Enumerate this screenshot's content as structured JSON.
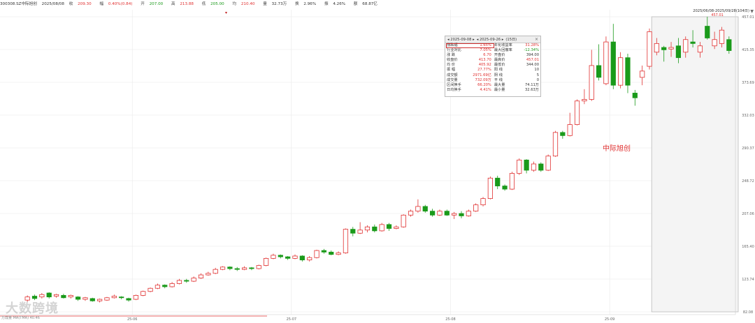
{
  "header": {
    "code": "300308.SZ中际旭创",
    "date": "2025/08/08",
    "close_label": "收",
    "close": "209.30",
    "chg_label": "幅",
    "chg": "0.40%(0.84)",
    "open_label": "开",
    "open": "207.00",
    "high_label": "高",
    "high": "213.88",
    "low_label": "低",
    "low": "205.00",
    "avg_label": "均",
    "avg": "210.40",
    "vol_label": "量",
    "vol": "32.73万",
    "turn_label": "换",
    "turn": "2.96%",
    "amp_label": "振",
    "amp": "4.26%",
    "amount_label": "额",
    "amount": "68.87亿"
  },
  "range_label": "2025/06/08-2025/09/28(104日)",
  "annotation": "中际旭创",
  "watermark": "大数跨境",
  "bottom_left": "万成量  MA(TMA) 40.46",
  "infobox": {
    "start": "2025-09-08",
    "end": "2025-09-26",
    "days": "(15日)",
    "rows": [
      [
        "涨跌幅",
        "1.65%",
        "年化收益率",
        "31.28%"
      ],
      [
        "行业对比",
        "7.05%",
        "最大回撤率",
        "-12.34%"
      ],
      [
        "涨 跌",
        "6.70",
        "开盘价",
        "394.00"
      ],
      [
        "收盘价",
        "413.70",
        "最高价",
        "457.01"
      ],
      [
        "均 价",
        "405.92",
        "最低价",
        "344.00"
      ],
      [
        "振 幅",
        "27.77%",
        "阳 线",
        "10"
      ],
      [
        "成交额",
        "2971.69亿",
        "阴 线",
        "5"
      ],
      [
        "成交量",
        "732.09万",
        "平 线",
        "0"
      ],
      [
        "区间换手",
        "66.20%",
        "最大量",
        "74.11万"
      ],
      [
        "日均换手",
        "4.41%",
        "最小量",
        "32.63万"
      ]
    ]
  },
  "colors": {
    "up": "#e03030",
    "down": "#1a9a1a",
    "grid": "#e8e8e8",
    "select": "#bbbbbb"
  },
  "chart_data": {
    "type": "candlestick",
    "y_ticks": [
      "457.01",
      "415.35",
      "373.69",
      "332.03",
      "290.37",
      "248.72",
      "207.06",
      "165.40",
      "123.74",
      "82.08"
    ],
    "ylim": [
      82.08,
      457.01
    ],
    "x_ticks": [
      "25-06",
      "25-07",
      "25-08",
      "25-09"
    ],
    "max_label": "457.01",
    "selection": {
      "from": "2025-09-08",
      "to": "2025-09-26"
    },
    "candles": [
      {
        "o": 97,
        "c": 101,
        "h": 103,
        "l": 95
      },
      {
        "o": 102,
        "c": 99,
        "h": 104,
        "l": 97
      },
      {
        "o": 101,
        "c": 104,
        "h": 106,
        "l": 99
      },
      {
        "o": 106,
        "c": 101,
        "h": 107,
        "l": 99
      },
      {
        "o": 102,
        "c": 104,
        "h": 105,
        "l": 100
      },
      {
        "o": 103,
        "c": 100,
        "h": 105,
        "l": 99
      },
      {
        "o": 101,
        "c": 103,
        "h": 104,
        "l": 99
      },
      {
        "o": 101,
        "c": 98,
        "h": 102,
        "l": 96
      },
      {
        "o": 98,
        "c": 100,
        "h": 101,
        "l": 96
      },
      {
        "o": 99,
        "c": 96,
        "h": 100,
        "l": 95
      },
      {
        "o": 96,
        "c": 98,
        "h": 99,
        "l": 94
      },
      {
        "o": 97,
        "c": 100,
        "h": 101,
        "l": 96
      },
      {
        "o": 100,
        "c": 102,
        "h": 104,
        "l": 99
      },
      {
        "o": 101,
        "c": 100,
        "h": 102,
        "l": 98
      },
      {
        "o": 99,
        "c": 97,
        "h": 100,
        "l": 95
      },
      {
        "o": 98,
        "c": 103,
        "h": 104,
        "l": 97
      },
      {
        "o": 103,
        "c": 108,
        "h": 109,
        "l": 102
      },
      {
        "o": 108,
        "c": 112,
        "h": 113,
        "l": 107
      },
      {
        "o": 112,
        "c": 116,
        "h": 118,
        "l": 111
      },
      {
        "o": 116,
        "c": 114,
        "h": 117,
        "l": 112
      },
      {
        "o": 114,
        "c": 118,
        "h": 120,
        "l": 113
      },
      {
        "o": 118,
        "c": 122,
        "h": 124,
        "l": 117
      },
      {
        "o": 122,
        "c": 121,
        "h": 124,
        "l": 119
      },
      {
        "o": 121,
        "c": 125,
        "h": 127,
        "l": 120
      },
      {
        "o": 125,
        "c": 129,
        "h": 131,
        "l": 124
      },
      {
        "o": 129,
        "c": 131,
        "h": 133,
        "l": 128
      },
      {
        "o": 131,
        "c": 136,
        "h": 138,
        "l": 130
      },
      {
        "o": 136,
        "c": 139,
        "h": 140,
        "l": 135
      },
      {
        "o": 139,
        "c": 137,
        "h": 140,
        "l": 135
      },
      {
        "o": 137,
        "c": 136,
        "h": 139,
        "l": 134
      },
      {
        "o": 136,
        "c": 138,
        "h": 140,
        "l": 135
      },
      {
        "o": 138,
        "c": 137,
        "h": 139,
        "l": 135
      },
      {
        "o": 137,
        "c": 141,
        "h": 142,
        "l": 136
      },
      {
        "o": 141,
        "c": 150,
        "h": 151,
        "l": 140
      },
      {
        "o": 150,
        "c": 154,
        "h": 156,
        "l": 149
      },
      {
        "o": 154,
        "c": 152,
        "h": 155,
        "l": 150
      },
      {
        "o": 152,
        "c": 150,
        "h": 153,
        "l": 148
      },
      {
        "o": 150,
        "c": 153,
        "h": 155,
        "l": 149
      },
      {
        "o": 153,
        "c": 148,
        "h": 154,
        "l": 146
      },
      {
        "o": 148,
        "c": 151,
        "h": 153,
        "l": 146
      },
      {
        "o": 151,
        "c": 160,
        "h": 161,
        "l": 150
      },
      {
        "o": 160,
        "c": 158,
        "h": 162,
        "l": 156
      },
      {
        "o": 158,
        "c": 155,
        "h": 160,
        "l": 154
      },
      {
        "o": 155,
        "c": 157,
        "h": 159,
        "l": 154
      },
      {
        "o": 157,
        "c": 187,
        "h": 188,
        "l": 156
      },
      {
        "o": 187,
        "c": 182,
        "h": 190,
        "l": 178
      },
      {
        "o": 182,
        "c": 186,
        "h": 196,
        "l": 181
      },
      {
        "o": 186,
        "c": 190,
        "h": 192,
        "l": 183
      },
      {
        "o": 190,
        "c": 185,
        "h": 193,
        "l": 183
      },
      {
        "o": 185,
        "c": 193,
        "h": 195,
        "l": 184
      },
      {
        "o": 193,
        "c": 188,
        "h": 195,
        "l": 185
      },
      {
        "o": 188,
        "c": 190,
        "h": 192,
        "l": 187
      },
      {
        "o": 190,
        "c": 205,
        "h": 206,
        "l": 189
      },
      {
        "o": 205,
        "c": 210,
        "h": 212,
        "l": 203
      },
      {
        "o": 210,
        "c": 216,
        "h": 225,
        "l": 208
      },
      {
        "o": 216,
        "c": 210,
        "h": 218,
        "l": 208
      },
      {
        "o": 210,
        "c": 205,
        "h": 213,
        "l": 203
      },
      {
        "o": 205,
        "c": 210,
        "h": 212,
        "l": 204
      },
      {
        "o": 210,
        "c": 205,
        "h": 212,
        "l": 204
      },
      {
        "o": 205,
        "c": 207,
        "h": 209,
        "l": 200
      },
      {
        "o": 207,
        "c": 204,
        "h": 210,
        "l": 201
      },
      {
        "o": 204,
        "c": 210,
        "h": 212,
        "l": 203
      },
      {
        "o": 210,
        "c": 218,
        "h": 220,
        "l": 209
      },
      {
        "o": 218,
        "c": 226,
        "h": 228,
        "l": 216
      },
      {
        "o": 226,
        "c": 252,
        "h": 254,
        "l": 225
      },
      {
        "o": 252,
        "c": 242,
        "h": 255,
        "l": 238
      },
      {
        "o": 242,
        "c": 238,
        "h": 244,
        "l": 236
      },
      {
        "o": 238,
        "c": 258,
        "h": 260,
        "l": 237
      },
      {
        "o": 258,
        "c": 275,
        "h": 277,
        "l": 256
      },
      {
        "o": 275,
        "c": 262,
        "h": 276,
        "l": 258
      },
      {
        "o": 262,
        "c": 270,
        "h": 273,
        "l": 260
      },
      {
        "o": 270,
        "c": 262,
        "h": 272,
        "l": 260
      },
      {
        "o": 262,
        "c": 280,
        "h": 282,
        "l": 261
      },
      {
        "o": 280,
        "c": 310,
        "h": 312,
        "l": 279
      },
      {
        "o": 310,
        "c": 306,
        "h": 312,
        "l": 302
      },
      {
        "o": 306,
        "c": 320,
        "h": 335,
        "l": 305
      },
      {
        "o": 320,
        "c": 350,
        "h": 352,
        "l": 319
      },
      {
        "o": 350,
        "c": 352,
        "h": 365,
        "l": 346
      },
      {
        "o": 352,
        "c": 395,
        "h": 415,
        "l": 350
      },
      {
        "o": 395,
        "c": 380,
        "h": 422,
        "l": 376
      },
      {
        "o": 372,
        "c": 425,
        "h": 432,
        "l": 370
      },
      {
        "o": 425,
        "c": 370,
        "h": 448,
        "l": 365
      },
      {
        "o": 370,
        "c": 405,
        "h": 412,
        "l": 366
      },
      {
        "o": 405,
        "c": 370,
        "h": 410,
        "l": 360
      },
      {
        "o": 360,
        "c": 354,
        "h": 364,
        "l": 344
      },
      {
        "o": 380,
        "c": 388,
        "h": 395,
        "l": 370
      },
      {
        "o": 394,
        "c": 438,
        "h": 442,
        "l": 390
      },
      {
        "o": 412,
        "c": 423,
        "h": 430,
        "l": 408
      },
      {
        "o": 418,
        "c": 415,
        "h": 420,
        "l": 400
      },
      {
        "o": 416,
        "c": 418,
        "h": 425,
        "l": 406
      },
      {
        "o": 420,
        "c": 405,
        "h": 430,
        "l": 398
      },
      {
        "o": 412,
        "c": 428,
        "h": 432,
        "l": 405
      },
      {
        "o": 425,
        "c": 423,
        "h": 440,
        "l": 418
      },
      {
        "o": 412,
        "c": 420,
        "h": 425,
        "l": 405
      },
      {
        "o": 445,
        "c": 430,
        "h": 457,
        "l": 428
      },
      {
        "o": 420,
        "c": 428,
        "h": 438,
        "l": 416
      },
      {
        "o": 423,
        "c": 440,
        "h": 444,
        "l": 418
      },
      {
        "o": 428,
        "c": 414,
        "h": 432,
        "l": 410
      }
    ]
  }
}
